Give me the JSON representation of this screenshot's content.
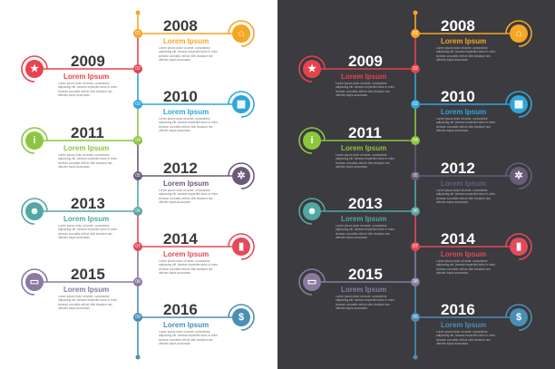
{
  "colors": [
    "#f5a623",
    "#e7434f",
    "#f08a24",
    "#8cc63f",
    "#2fa6d9",
    "#7c6d8a",
    "#52a8a0",
    "#e34a5a",
    "#8a7aa0",
    "#4a8fb5"
  ],
  "entries": [
    {
      "num": "01",
      "year": "2008",
      "title": "Lorem Ipsum",
      "icon": "home-icon",
      "glyph": "⌂",
      "color": "#f5a623",
      "body": "Lorem ipsum dolor sit amet, consectetur adipiscing elit. Aenean imperdiet dolor in enim. Aenean convallis velit at nibh tincidunt nec ultricies turpis accumsan."
    },
    {
      "num": "02",
      "year": "2009",
      "title": "Lorem Ipsum",
      "icon": "star-icon",
      "glyph": "★",
      "color": "#e7434f",
      "body": "Lorem ipsum dolor sit amet, consectetur adipiscing elit. Aenean imperdiet dolor in enim. Aenean convallis velit at nibh tincidunt nec ultricies turpis accumsan."
    },
    {
      "num": "03",
      "year": "2010",
      "title": "Lorem Ipsum",
      "icon": "calendar-icon",
      "glyph": "▦",
      "color": "#2fa6d9",
      "body": "Lorem ipsum dolor sit amet, consectetur adipiscing elit. Aenean imperdiet dolor in enim. Aenean convallis velit at nibh tincidunt nec ultricies turpis accumsan."
    },
    {
      "num": "04",
      "year": "2011",
      "title": "Lorem Ipsum",
      "icon": "info-icon",
      "glyph": "i",
      "color": "#8cc63f",
      "body": "Lorem ipsum dolor sit amet, consectetur adipiscing elit. Aenean imperdiet dolor in enim. Aenean convallis velit at nibh tincidunt nec ultricies turpis accumsan."
    },
    {
      "num": "05",
      "year": "2012",
      "title": "Lorem Ipsum",
      "icon": "gear-icon",
      "glyph": "✲",
      "color": "#6b5b7b",
      "body": "Lorem ipsum dolor sit amet, consectetur adipiscing elit. Aenean imperdiet dolor in enim. Aenean convallis velit at nibh tincidunt nec ultricies turpis accumsan."
    },
    {
      "num": "06",
      "year": "2013",
      "title": "Lorem Ipsum",
      "icon": "people-icon",
      "glyph": "☻",
      "color": "#52a8a0",
      "body": "Lorem ipsum dolor sit amet, consectetur adipiscing elit. Aenean imperdiet dolor in enim. Aenean convallis velit at nibh tincidunt nec ultricies turpis accumsan."
    },
    {
      "num": "07",
      "year": "2014",
      "title": "Lorem Ipsum",
      "icon": "bar-chart-icon",
      "glyph": "▮",
      "color": "#e34a5a",
      "body": "Lorem ipsum dolor sit amet, consectetur adipiscing elit. Aenean imperdiet dolor in enim. Aenean convallis velit at nibh tincidunt nec ultricies turpis accumsan."
    },
    {
      "num": "08",
      "year": "2015",
      "title": "Lorem Ipsum",
      "icon": "monitor-icon",
      "glyph": "▭",
      "color": "#8a7aa0",
      "body": "Lorem ipsum dolor sit amet, consectetur adipiscing elit. Aenean imperdiet dolor in enim. Aenean convallis velit at nibh tincidunt nec ultricies turpis accumsan."
    },
    {
      "num": "09",
      "year": "2016",
      "title": "Lorem Ipsum",
      "icon": "dollar-icon",
      "glyph": "$",
      "color": "#4a8fb5",
      "body": "Lorem ipsum dolor sit amet, consectetur adipiscing elit. Aenean imperdiet dolor in enim. Aenean convallis velit at nibh tincidunt nec ultricies turpis accumsan."
    }
  ]
}
